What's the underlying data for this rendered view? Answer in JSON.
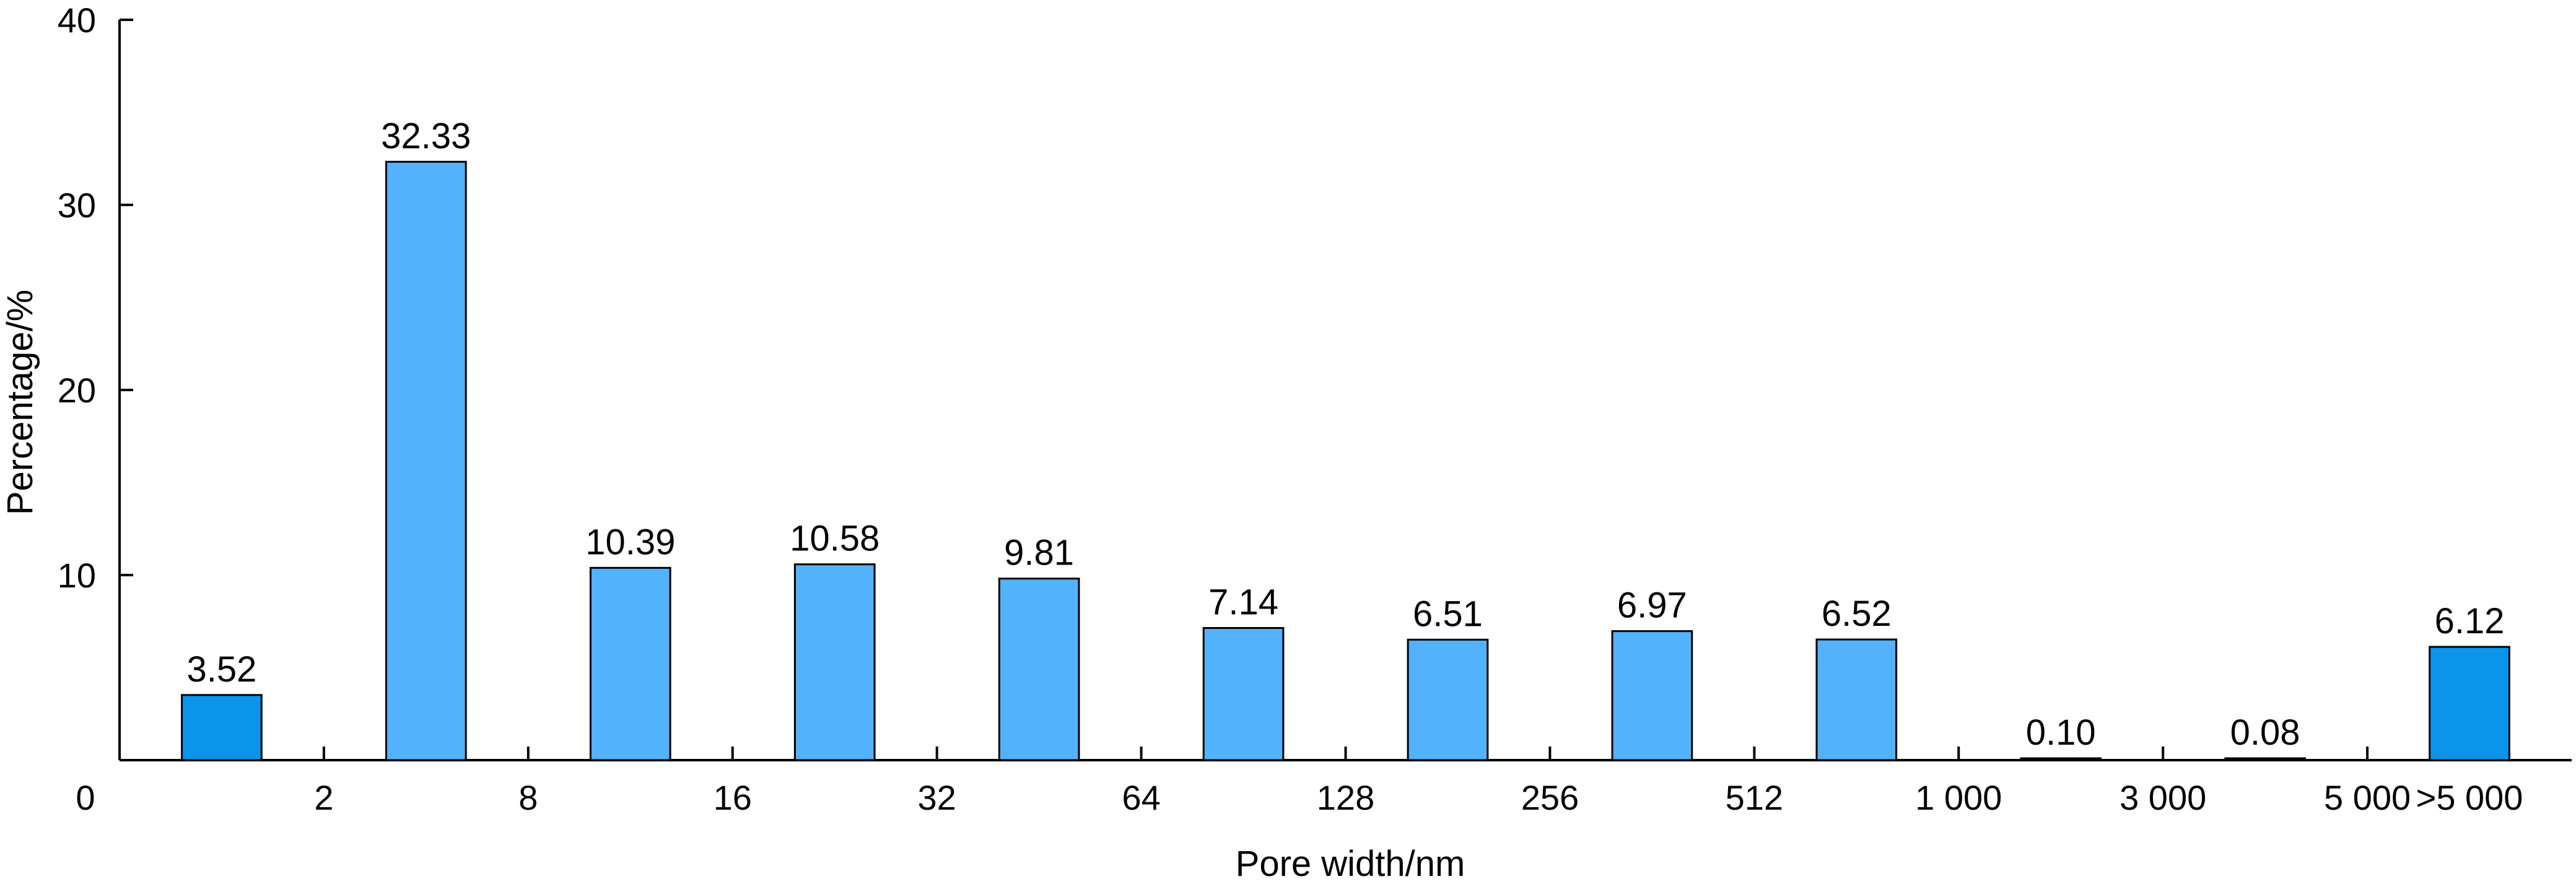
{
  "chart_data": {
    "type": "bar",
    "title": "",
    "xlabel": "Pore width/nm",
    "ylabel": "Percentage/%",
    "ylim": [
      0,
      40
    ],
    "yticks": [
      "0",
      "10",
      "20",
      "30",
      "40"
    ],
    "xticks": [
      "2",
      "8",
      "16",
      "32",
      "64",
      "128",
      "256",
      "512",
      "1 000",
      "3 000",
      "5 000",
      ">5 000"
    ],
    "categories": [
      "0–2",
      "2–8",
      "8–16",
      "16–32",
      "32–64",
      "64–128",
      "128–256",
      "256–512",
      "512–1 000",
      "1 000–3 000",
      "3 000–5 000",
      ">5 000"
    ],
    "values": [
      3.52,
      32.33,
      10.39,
      10.58,
      9.81,
      7.14,
      6.51,
      6.97,
      6.52,
      0.1,
      0.08,
      6.12
    ],
    "labels": [
      "3.52",
      "32.33",
      "10.39",
      "10.58",
      "9.81",
      "7.14",
      "6.51",
      "6.97",
      "6.52",
      "0.10",
      "0.08",
      "6.12"
    ],
    "bar_colors": [
      "#0a95ea",
      "#52b2fb",
      "#52b2fb",
      "#52b2fb",
      "#52b2fb",
      "#52b2fb",
      "#52b2fb",
      "#52b2fb",
      "#52b2fb",
      "#52b2fb",
      "#52b2fb",
      "#0a95ea"
    ],
    "grid": false,
    "legend": "none"
  }
}
